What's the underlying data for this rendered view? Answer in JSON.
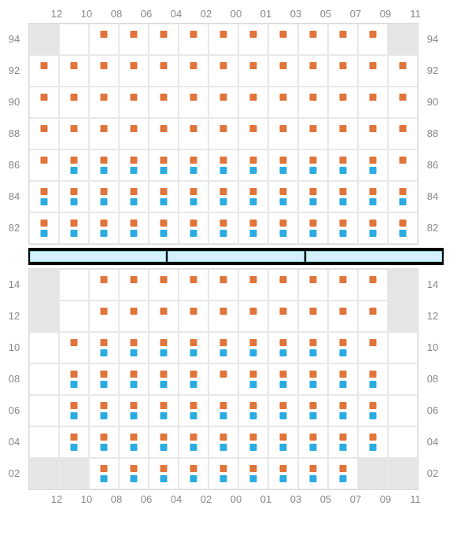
{
  "colors": {
    "orange": "#e0743a",
    "blue": "#2aace2",
    "gray_cell": "#e5e5e5",
    "grid_border": "#e8e8e8",
    "label_text": "#888888",
    "divider_bg": "#000000",
    "divider_seg": "#d4f0fc"
  },
  "columns": [
    "12",
    "10",
    "08",
    "06",
    "04",
    "02",
    "00",
    "01",
    "03",
    "05",
    "07",
    "09",
    "11"
  ],
  "top_section": {
    "rows": [
      "94",
      "92",
      "90",
      "88",
      "86",
      "84",
      "82"
    ],
    "cells": [
      {
        "r": 0,
        "c": 0,
        "gray": true
      },
      {
        "r": 0,
        "c": 1
      },
      {
        "r": 0,
        "c": 2,
        "o": 1
      },
      {
        "r": 0,
        "c": 3,
        "o": 1
      },
      {
        "r": 0,
        "c": 4,
        "o": 1
      },
      {
        "r": 0,
        "c": 5,
        "o": 1
      },
      {
        "r": 0,
        "c": 6,
        "o": 1
      },
      {
        "r": 0,
        "c": 7,
        "o": 1
      },
      {
        "r": 0,
        "c": 8,
        "o": 1
      },
      {
        "r": 0,
        "c": 9,
        "o": 1
      },
      {
        "r": 0,
        "c": 10,
        "o": 1
      },
      {
        "r": 0,
        "c": 11,
        "o": 1
      },
      {
        "r": 0,
        "c": 12,
        "gray": true
      },
      {
        "r": 1,
        "c": 0,
        "o": 1
      },
      {
        "r": 1,
        "c": 1,
        "o": 1
      },
      {
        "r": 1,
        "c": 2,
        "o": 1
      },
      {
        "r": 1,
        "c": 3,
        "o": 1
      },
      {
        "r": 1,
        "c": 4,
        "o": 1
      },
      {
        "r": 1,
        "c": 5,
        "o": 1
      },
      {
        "r": 1,
        "c": 6,
        "o": 1
      },
      {
        "r": 1,
        "c": 7,
        "o": 1
      },
      {
        "r": 1,
        "c": 8,
        "o": 1
      },
      {
        "r": 1,
        "c": 9,
        "o": 1
      },
      {
        "r": 1,
        "c": 10,
        "o": 1
      },
      {
        "r": 1,
        "c": 11,
        "o": 1
      },
      {
        "r": 1,
        "c": 12,
        "o": 1
      },
      {
        "r": 2,
        "c": 0,
        "o": 1
      },
      {
        "r": 2,
        "c": 1,
        "o": 1
      },
      {
        "r": 2,
        "c": 2,
        "o": 1
      },
      {
        "r": 2,
        "c": 3,
        "o": 1
      },
      {
        "r": 2,
        "c": 4,
        "o": 1
      },
      {
        "r": 2,
        "c": 5,
        "o": 1
      },
      {
        "r": 2,
        "c": 6,
        "o": 1
      },
      {
        "r": 2,
        "c": 7,
        "o": 1
      },
      {
        "r": 2,
        "c": 8,
        "o": 1
      },
      {
        "r": 2,
        "c": 9,
        "o": 1
      },
      {
        "r": 2,
        "c": 10,
        "o": 1
      },
      {
        "r": 2,
        "c": 11,
        "o": 1
      },
      {
        "r": 2,
        "c": 12,
        "o": 1
      },
      {
        "r": 3,
        "c": 0,
        "o": 1
      },
      {
        "r": 3,
        "c": 1,
        "o": 1
      },
      {
        "r": 3,
        "c": 2,
        "o": 1
      },
      {
        "r": 3,
        "c": 3,
        "o": 1
      },
      {
        "r": 3,
        "c": 4,
        "o": 1
      },
      {
        "r": 3,
        "c": 5,
        "o": 1
      },
      {
        "r": 3,
        "c": 6,
        "o": 1
      },
      {
        "r": 3,
        "c": 7,
        "o": 1
      },
      {
        "r": 3,
        "c": 8,
        "o": 1
      },
      {
        "r": 3,
        "c": 9,
        "o": 1
      },
      {
        "r": 3,
        "c": 10,
        "o": 1
      },
      {
        "r": 3,
        "c": 11,
        "o": 1
      },
      {
        "r": 3,
        "c": 12,
        "o": 1
      },
      {
        "r": 4,
        "c": 0,
        "o": 1
      },
      {
        "r": 4,
        "c": 1,
        "o": 1,
        "b": 1
      },
      {
        "r": 4,
        "c": 2,
        "o": 1,
        "b": 1
      },
      {
        "r": 4,
        "c": 3,
        "o": 1,
        "b": 1
      },
      {
        "r": 4,
        "c": 4,
        "o": 1,
        "b": 1
      },
      {
        "r": 4,
        "c": 5,
        "o": 1,
        "b": 1
      },
      {
        "r": 4,
        "c": 6,
        "o": 1,
        "b": 1
      },
      {
        "r": 4,
        "c": 7,
        "o": 1,
        "b": 1
      },
      {
        "r": 4,
        "c": 8,
        "o": 1,
        "b": 1
      },
      {
        "r": 4,
        "c": 9,
        "o": 1,
        "b": 1
      },
      {
        "r": 4,
        "c": 10,
        "o": 1,
        "b": 1
      },
      {
        "r": 4,
        "c": 11,
        "o": 1,
        "b": 1
      },
      {
        "r": 4,
        "c": 12,
        "o": 1
      },
      {
        "r": 5,
        "c": 0,
        "o": 1,
        "b": 1
      },
      {
        "r": 5,
        "c": 1,
        "o": 1,
        "b": 1
      },
      {
        "r": 5,
        "c": 2,
        "o": 1,
        "b": 1
      },
      {
        "r": 5,
        "c": 3,
        "o": 1,
        "b": 1
      },
      {
        "r": 5,
        "c": 4,
        "o": 1,
        "b": 1
      },
      {
        "r": 5,
        "c": 5,
        "o": 1,
        "b": 1
      },
      {
        "r": 5,
        "c": 6,
        "o": 1,
        "b": 1
      },
      {
        "r": 5,
        "c": 7,
        "o": 1,
        "b": 1
      },
      {
        "r": 5,
        "c": 8,
        "o": 1,
        "b": 1
      },
      {
        "r": 5,
        "c": 9,
        "o": 1,
        "b": 1
      },
      {
        "r": 5,
        "c": 10,
        "o": 1,
        "b": 1
      },
      {
        "r": 5,
        "c": 11,
        "o": 1,
        "b": 1
      },
      {
        "r": 5,
        "c": 12,
        "o": 1,
        "b": 1
      },
      {
        "r": 6,
        "c": 0,
        "o": 1,
        "b": 1
      },
      {
        "r": 6,
        "c": 1,
        "o": 1,
        "b": 1
      },
      {
        "r": 6,
        "c": 2,
        "o": 1,
        "b": 1
      },
      {
        "r": 6,
        "c": 3,
        "o": 1,
        "b": 1
      },
      {
        "r": 6,
        "c": 4,
        "o": 1,
        "b": 1
      },
      {
        "r": 6,
        "c": 5,
        "o": 1,
        "b": 1
      },
      {
        "r": 6,
        "c": 6,
        "o": 1,
        "b": 1
      },
      {
        "r": 6,
        "c": 7,
        "o": 1,
        "b": 1
      },
      {
        "r": 6,
        "c": 8,
        "o": 1,
        "b": 1
      },
      {
        "r": 6,
        "c": 9,
        "o": 1,
        "b": 1
      },
      {
        "r": 6,
        "c": 10,
        "o": 1,
        "b": 1
      },
      {
        "r": 6,
        "c": 11,
        "o": 1,
        "b": 1
      },
      {
        "r": 6,
        "c": 12,
        "o": 1,
        "b": 1
      }
    ]
  },
  "bottom_section": {
    "rows": [
      "14",
      "12",
      "10",
      "08",
      "06",
      "04",
      "02"
    ],
    "cells": [
      {
        "r": 0,
        "c": 0,
        "gray": true
      },
      {
        "r": 0,
        "c": 1
      },
      {
        "r": 0,
        "c": 2,
        "o": 1
      },
      {
        "r": 0,
        "c": 3,
        "o": 1
      },
      {
        "r": 0,
        "c": 4,
        "o": 1
      },
      {
        "r": 0,
        "c": 5,
        "o": 1
      },
      {
        "r": 0,
        "c": 6,
        "o": 1
      },
      {
        "r": 0,
        "c": 7,
        "o": 1
      },
      {
        "r": 0,
        "c": 8,
        "o": 1
      },
      {
        "r": 0,
        "c": 9,
        "o": 1
      },
      {
        "r": 0,
        "c": 10,
        "o": 1
      },
      {
        "r": 0,
        "c": 11,
        "o": 1
      },
      {
        "r": 0,
        "c": 12,
        "gray": true
      },
      {
        "r": 1,
        "c": 0,
        "gray": true
      },
      {
        "r": 1,
        "c": 1
      },
      {
        "r": 1,
        "c": 2,
        "o": 1
      },
      {
        "r": 1,
        "c": 3,
        "o": 1
      },
      {
        "r": 1,
        "c": 4,
        "o": 1
      },
      {
        "r": 1,
        "c": 5,
        "o": 1
      },
      {
        "r": 1,
        "c": 6,
        "o": 1
      },
      {
        "r": 1,
        "c": 7,
        "o": 1
      },
      {
        "r": 1,
        "c": 8,
        "o": 1
      },
      {
        "r": 1,
        "c": 9,
        "o": 1
      },
      {
        "r": 1,
        "c": 10,
        "o": 1
      },
      {
        "r": 1,
        "c": 11,
        "o": 1
      },
      {
        "r": 1,
        "c": 12,
        "gray": true
      },
      {
        "r": 2,
        "c": 0
      },
      {
        "r": 2,
        "c": 1,
        "o": 1
      },
      {
        "r": 2,
        "c": 2,
        "o": 1,
        "b": 1
      },
      {
        "r": 2,
        "c": 3,
        "o": 1,
        "b": 1
      },
      {
        "r": 2,
        "c": 4,
        "o": 1,
        "b": 1
      },
      {
        "r": 2,
        "c": 5,
        "o": 1,
        "b": 1
      },
      {
        "r": 2,
        "c": 6,
        "o": 1,
        "b": 1
      },
      {
        "r": 2,
        "c": 7,
        "o": 1,
        "b": 1
      },
      {
        "r": 2,
        "c": 8,
        "o": 1,
        "b": 1
      },
      {
        "r": 2,
        "c": 9,
        "o": 1,
        "b": 1
      },
      {
        "r": 2,
        "c": 10,
        "o": 1,
        "b": 1
      },
      {
        "r": 2,
        "c": 11,
        "o": 1
      },
      {
        "r": 2,
        "c": 12
      },
      {
        "r": 3,
        "c": 0
      },
      {
        "r": 3,
        "c": 1,
        "o": 1,
        "b": 1
      },
      {
        "r": 3,
        "c": 2,
        "o": 1,
        "b": 1
      },
      {
        "r": 3,
        "c": 3,
        "o": 1,
        "b": 1
      },
      {
        "r": 3,
        "c": 4,
        "o": 1,
        "b": 1
      },
      {
        "r": 3,
        "c": 5,
        "o": 1,
        "b": 1
      },
      {
        "r": 3,
        "c": 6,
        "o": 1
      },
      {
        "r": 3,
        "c": 7,
        "o": 1,
        "b": 1
      },
      {
        "r": 3,
        "c": 8,
        "o": 1,
        "b": 1
      },
      {
        "r": 3,
        "c": 9,
        "o": 1,
        "b": 1
      },
      {
        "r": 3,
        "c": 10,
        "o": 1,
        "b": 1
      },
      {
        "r": 3,
        "c": 11,
        "o": 1,
        "b": 1
      },
      {
        "r": 3,
        "c": 12
      },
      {
        "r": 4,
        "c": 0
      },
      {
        "r": 4,
        "c": 1,
        "o": 1,
        "b": 1
      },
      {
        "r": 4,
        "c": 2,
        "o": 1,
        "b": 1
      },
      {
        "r": 4,
        "c": 3,
        "o": 1,
        "b": 1
      },
      {
        "r": 4,
        "c": 4,
        "o": 1,
        "b": 1
      },
      {
        "r": 4,
        "c": 5,
        "o": 1,
        "b": 1
      },
      {
        "r": 4,
        "c": 6,
        "o": 1,
        "b": 1
      },
      {
        "r": 4,
        "c": 7,
        "o": 1,
        "b": 1
      },
      {
        "r": 4,
        "c": 8,
        "o": 1,
        "b": 1
      },
      {
        "r": 4,
        "c": 9,
        "o": 1,
        "b": 1
      },
      {
        "r": 4,
        "c": 10,
        "o": 1,
        "b": 1
      },
      {
        "r": 4,
        "c": 11,
        "o": 1,
        "b": 1
      },
      {
        "r": 4,
        "c": 12
      },
      {
        "r": 5,
        "c": 0
      },
      {
        "r": 5,
        "c": 1,
        "o": 1,
        "b": 1
      },
      {
        "r": 5,
        "c": 2,
        "o": 1,
        "b": 1
      },
      {
        "r": 5,
        "c": 3,
        "o": 1,
        "b": 1
      },
      {
        "r": 5,
        "c": 4,
        "o": 1,
        "b": 1
      },
      {
        "r": 5,
        "c": 5,
        "o": 1,
        "b": 1
      },
      {
        "r": 5,
        "c": 6,
        "o": 1,
        "b": 1
      },
      {
        "r": 5,
        "c": 7,
        "o": 1,
        "b": 1
      },
      {
        "r": 5,
        "c": 8,
        "o": 1,
        "b": 1
      },
      {
        "r": 5,
        "c": 9,
        "o": 1,
        "b": 1
      },
      {
        "r": 5,
        "c": 10,
        "o": 1,
        "b": 1
      },
      {
        "r": 5,
        "c": 11,
        "o": 1,
        "b": 1
      },
      {
        "r": 5,
        "c": 12
      },
      {
        "r": 6,
        "c": 0,
        "gray": true
      },
      {
        "r": 6,
        "c": 1,
        "gray": true
      },
      {
        "r": 6,
        "c": 2,
        "o": 1,
        "b": 1
      },
      {
        "r": 6,
        "c": 3,
        "o": 1,
        "b": 1
      },
      {
        "r": 6,
        "c": 4,
        "o": 1,
        "b": 1
      },
      {
        "r": 6,
        "c": 5,
        "o": 1,
        "b": 1
      },
      {
        "r": 6,
        "c": 6,
        "o": 1,
        "b": 1
      },
      {
        "r": 6,
        "c": 7,
        "o": 1,
        "b": 1
      },
      {
        "r": 6,
        "c": 8,
        "o": 1,
        "b": 1
      },
      {
        "r": 6,
        "c": 9,
        "o": 1,
        "b": 1
      },
      {
        "r": 6,
        "c": 10,
        "o": 1,
        "b": 1
      },
      {
        "r": 6,
        "c": 11,
        "gray": true
      },
      {
        "r": 6,
        "c": 12,
        "gray": true
      }
    ]
  },
  "divider_segments": 3
}
